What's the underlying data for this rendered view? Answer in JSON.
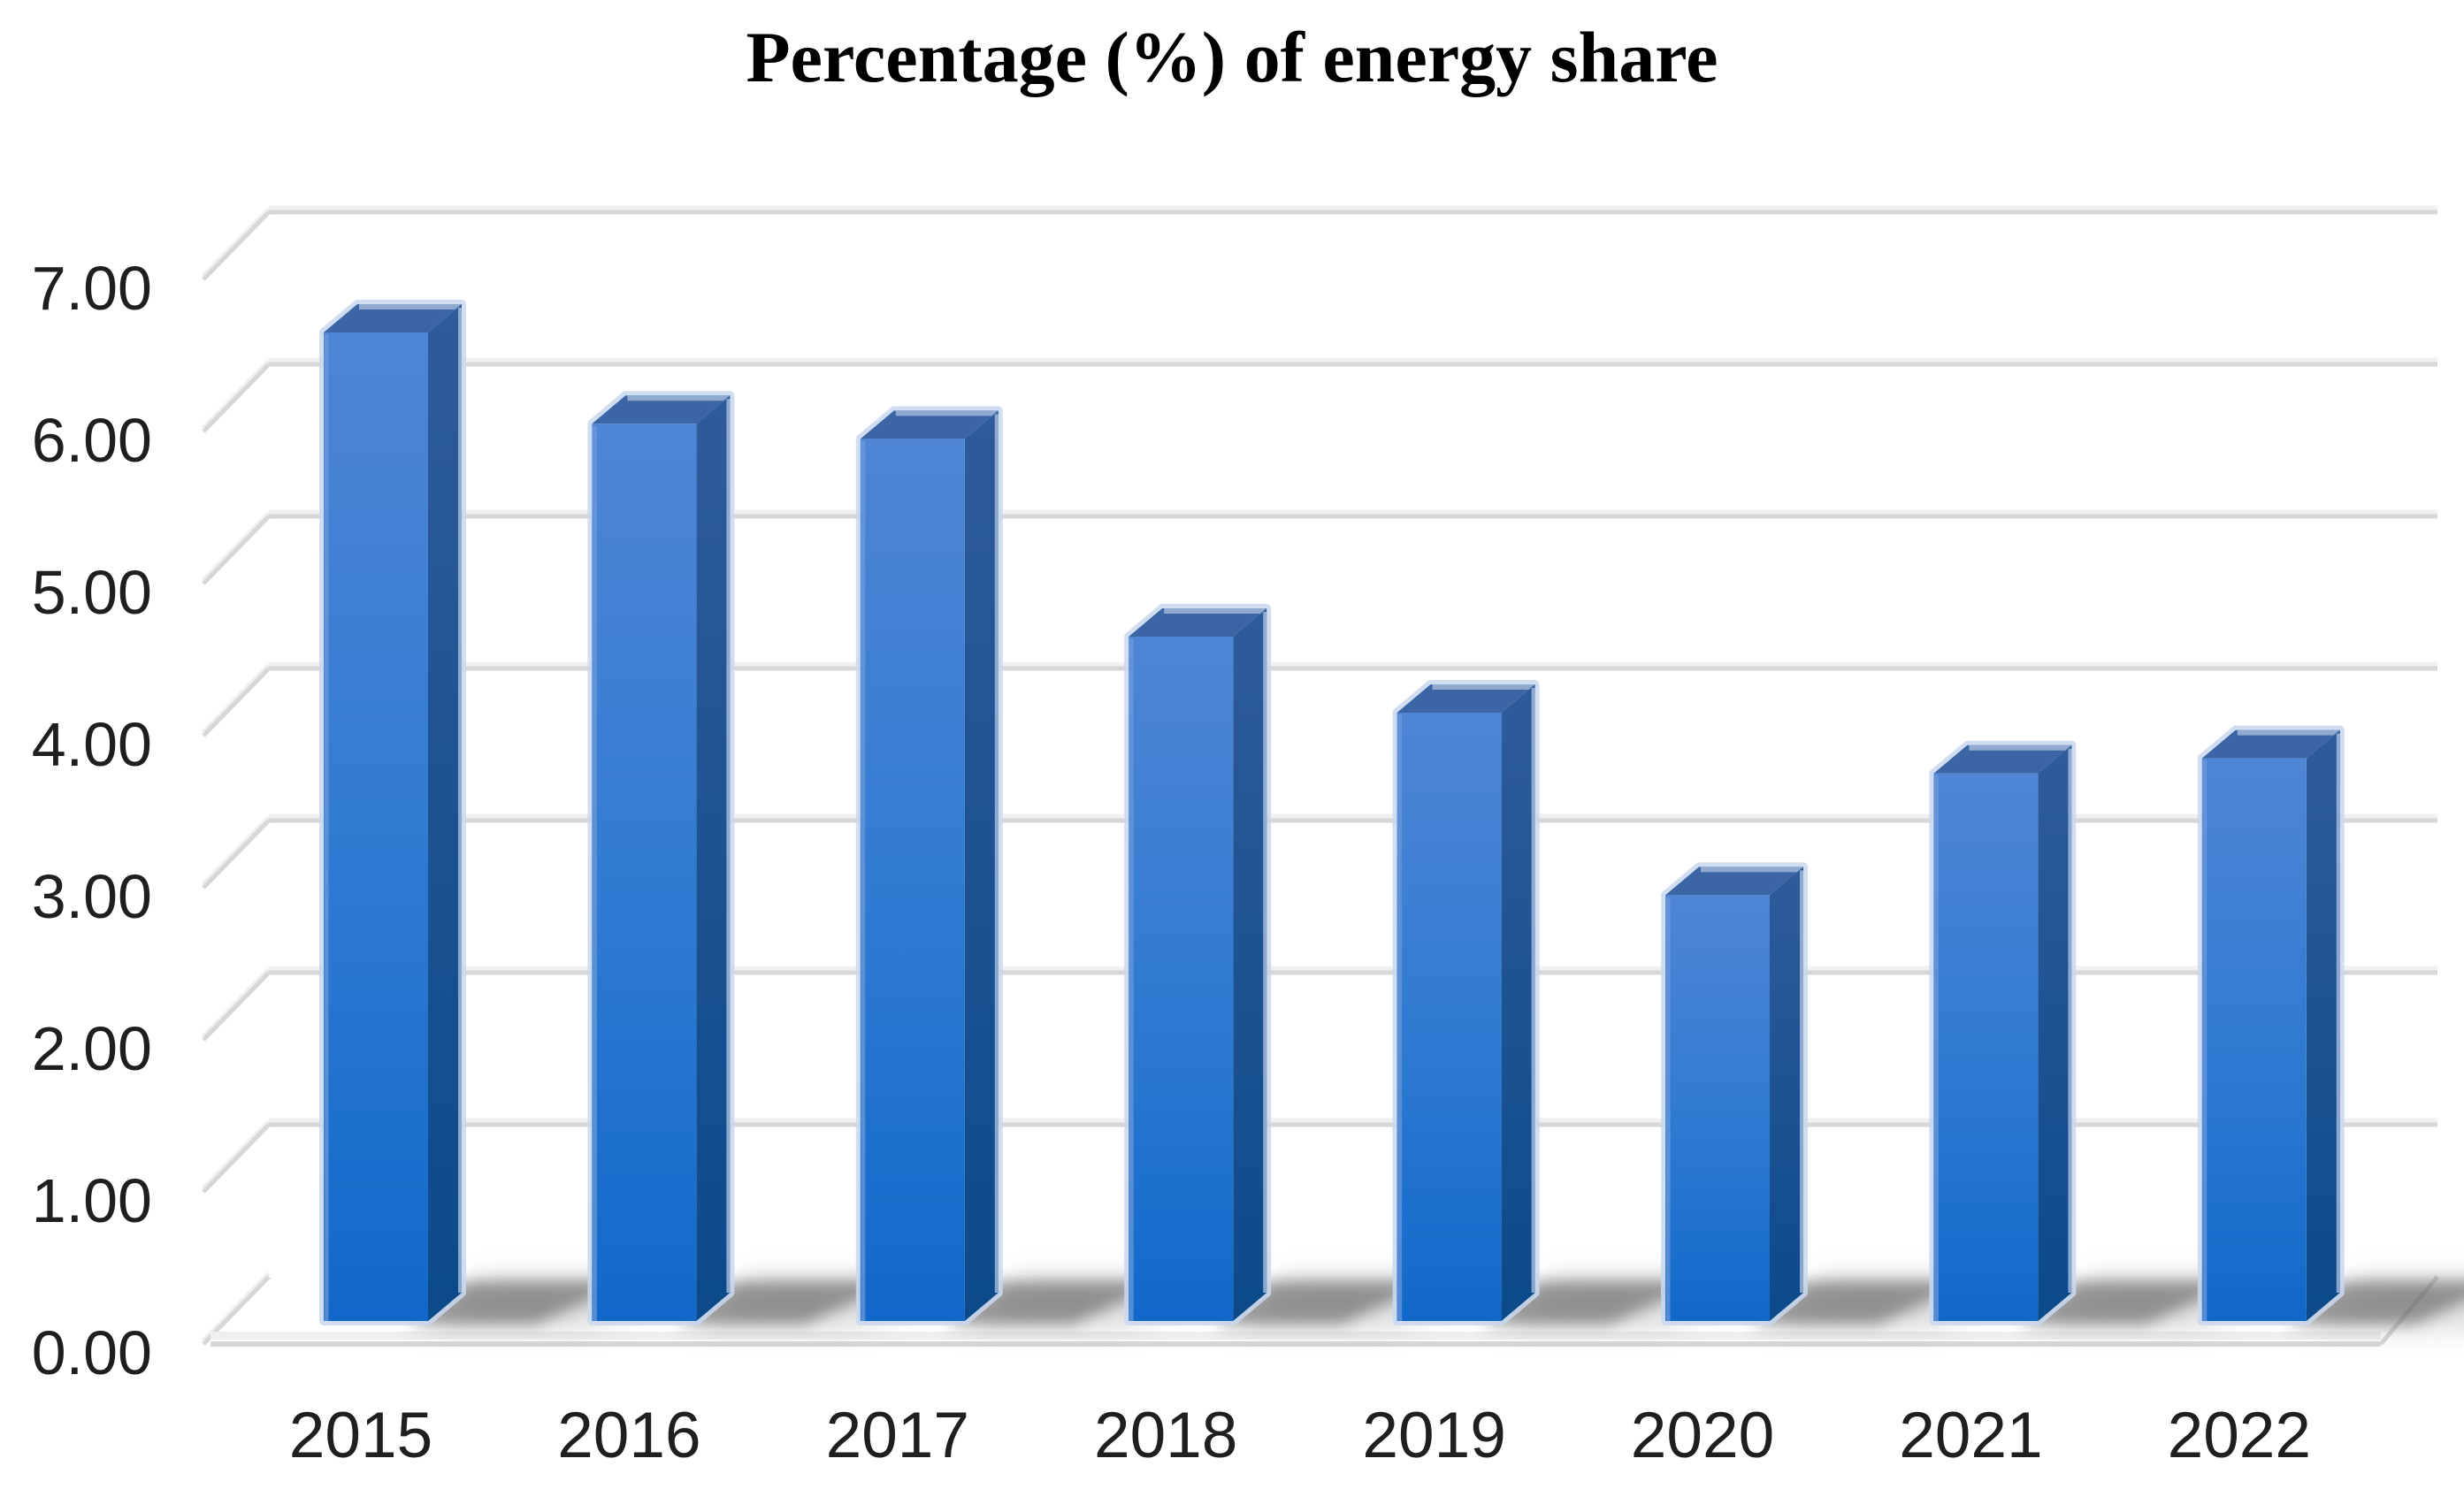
{
  "title": "Percentage (%) of energy share",
  "chart_data": {
    "type": "bar",
    "style": "3d-column",
    "title": "Percentage (%) of energy share",
    "xlabel": "",
    "ylabel": "",
    "categories": [
      "2015",
      "2016",
      "2017",
      "2018",
      "2019",
      "2020",
      "2021",
      "2022"
    ],
    "values": [
      6.5,
      5.9,
      5.8,
      4.5,
      4.0,
      2.8,
      3.6,
      3.7
    ],
    "series_name": "Percentage (%) of energy share",
    "ylim": [
      0,
      7
    ],
    "ytick_step": 1,
    "ytick_labels": [
      "0.00",
      "1.00",
      "2.00",
      "3.00",
      "4.00",
      "5.00",
      "6.00",
      "7.00"
    ],
    "grid": true,
    "legend": false,
    "data_labels": false,
    "colors": {
      "bar_front_top": "#4f85d5",
      "bar_front_mid": "#2e7ad2",
      "bar_front_bottom": "#1168ca",
      "bar_side_top": "#2f5b9b",
      "bar_side_bottom": "#0b4a8a",
      "bar_top_face": "#3c65a6",
      "bar_edge_highlight": "#a9bfdf",
      "gridline": "#d7d7d7",
      "gridline_light": "#f0f0f0",
      "shadow": "#555555",
      "background": "#ffffff",
      "text": "#1f1f1f"
    }
  }
}
